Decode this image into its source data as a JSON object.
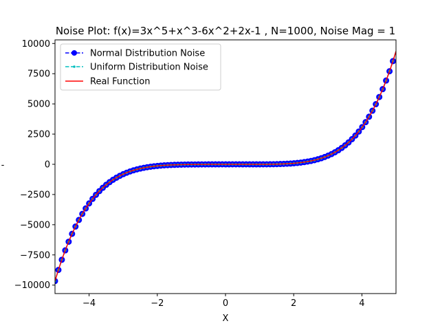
{
  "chart_data": {
    "type": "line",
    "title": "Noise Plot: f(x)=3x^5+x^3-6x^2+2x-1 , N=1000, Noise Mag = 1",
    "xlabel": "X",
    "ylabel": "-",
    "xlim": [
      -5,
      5
    ],
    "ylim": [
      -10700,
      10300
    ],
    "x_ticks": [
      -4,
      -2,
      0,
      2,
      4
    ],
    "x_tick_labels": [
      "−4",
      "−2",
      "0",
      "2",
      "4"
    ],
    "y_ticks": [
      -10000,
      -7500,
      -5000,
      -2500,
      0,
      2500,
      5000,
      7500,
      10000
    ],
    "y_tick_labels": [
      "−10000",
      "−7500",
      "−5000",
      "−2500",
      "0",
      "2500",
      "5000",
      "7500",
      "10000"
    ],
    "grid": false,
    "legend_position": "upper-left",
    "series": [
      {
        "name": "Normal Distribution Noise",
        "color": "#0000ff",
        "style": "dashed line with circle markers",
        "function": "3x^5+x^3-6x^2+2x-1",
        "x_range": [
          -5,
          5
        ],
        "points": 1000
      },
      {
        "name": "Uniform Distribution Noise",
        "color": "#00bfbf",
        "style": "dashed line with point markers",
        "function": "3x^5+x^3-6x^2+2x-1",
        "x_range": [
          -5,
          5
        ],
        "points": 1000
      },
      {
        "name": "Real Function",
        "color": "#ff0000",
        "style": "solid line",
        "function": "3x^5+x^3-6x^2+2x-1",
        "x_range": [
          -5,
          5
        ],
        "points": 1000
      }
    ]
  }
}
